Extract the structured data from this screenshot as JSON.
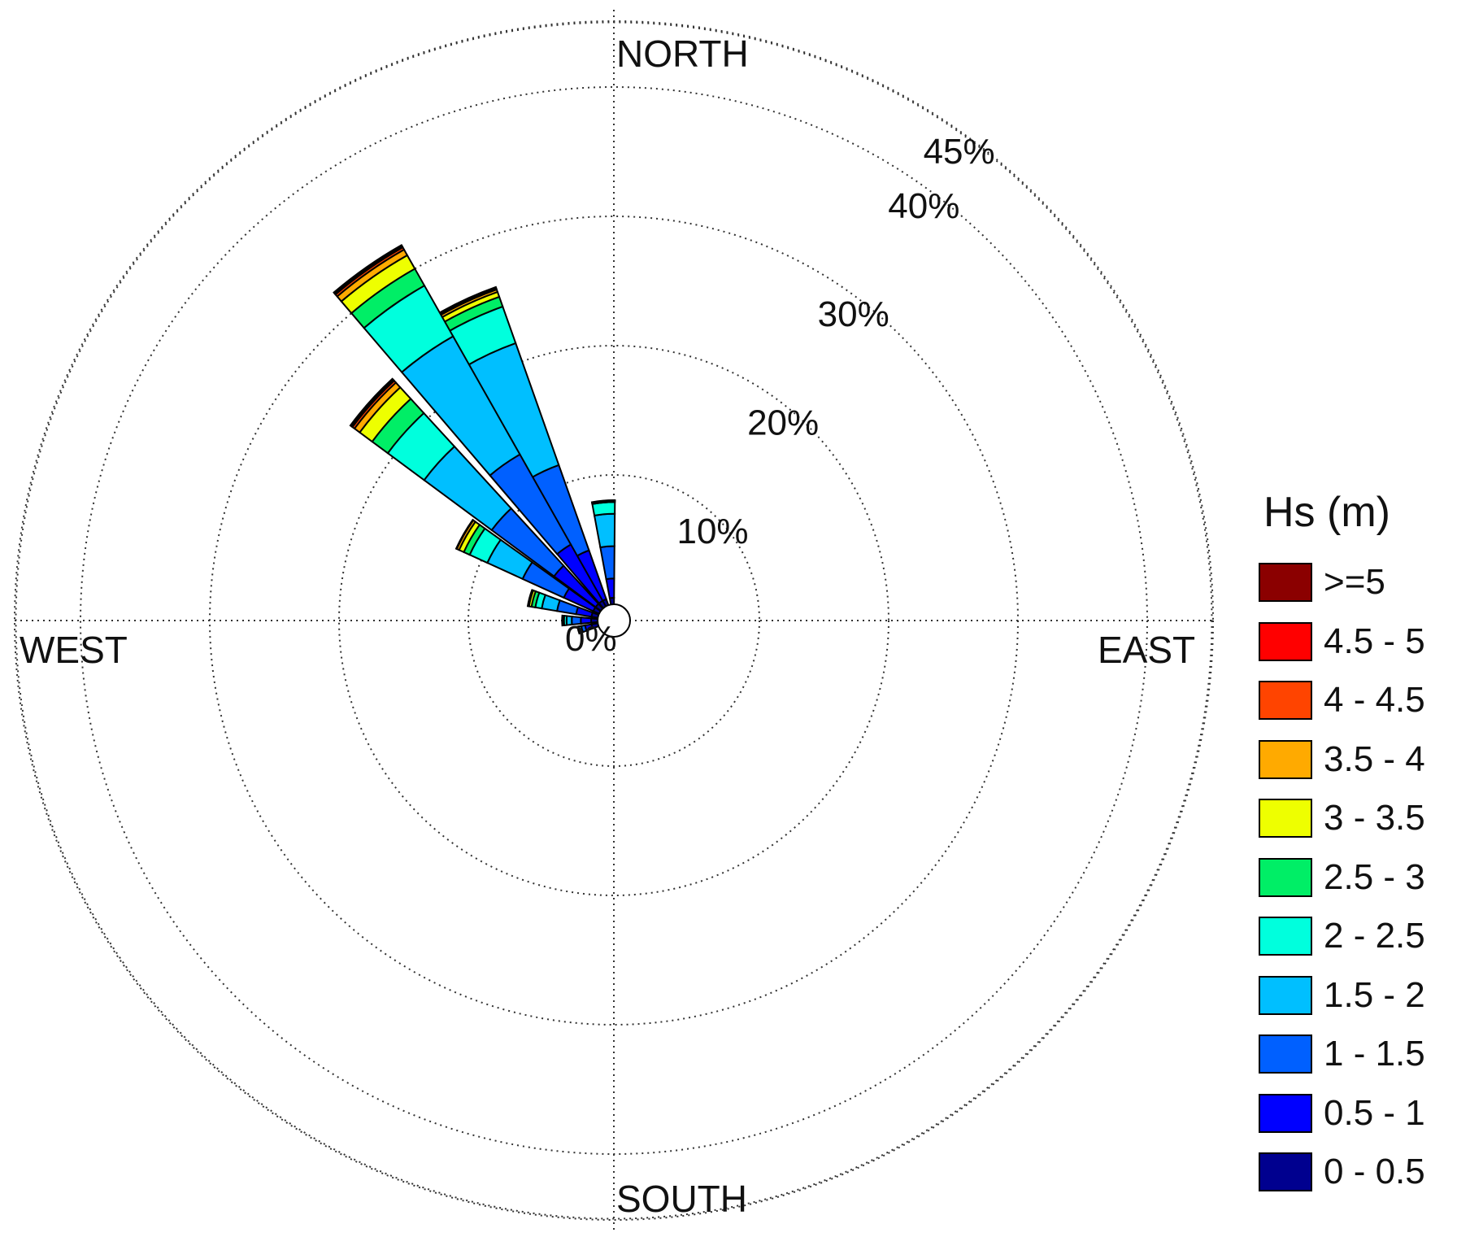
{
  "chart_data": {
    "type": "windrose",
    "directions": {
      "north": "NORTH",
      "east": "EAST",
      "south": "SOUTH",
      "west": "WEST"
    },
    "radial_ticks": [
      {
        "value": 10,
        "label": "10%"
      },
      {
        "value": 20,
        "label": "20%"
      },
      {
        "value": 30,
        "label": "30%"
      },
      {
        "value": 40,
        "label": "40%"
      },
      {
        "value": 45,
        "label": "45%"
      }
    ],
    "origin_label": "0%",
    "legend": {
      "title": "Hs (m)",
      "placement": "right"
    },
    "bins": [
      {
        "label": "0 - 0.5",
        "color": "#00008f"
      },
      {
        "label": "0.5 - 1",
        "color": "#0000ff"
      },
      {
        "label": "1 - 1.5",
        "color": "#0060ff"
      },
      {
        "label": "1.5 - 2",
        "color": "#00bfff"
      },
      {
        "label": "2 - 2.5",
        "color": "#00ffdd"
      },
      {
        "label": "2.5 - 3",
        "color": "#00ee66"
      },
      {
        "label": "3 - 3.5",
        "color": "#eeff00"
      },
      {
        "label": "3.5 - 4",
        "color": "#ffaa00"
      },
      {
        "label": "4 - 4.5",
        "color": "#ff4400"
      },
      {
        "label": "4.5 - 5",
        "color": "#ff0000"
      },
      {
        "label": ">=5",
        "color": "#8b0000"
      }
    ],
    "sectors": [
      {
        "direction_deg": 355,
        "counts": [
          0.5,
          1.5,
          2.5,
          2.5,
          0.9,
          0.1,
          0.03,
          0.02,
          0,
          0,
          0
        ]
      },
      {
        "direction_deg": 335,
        "counts": [
          0.5,
          4.0,
          7.0,
          10.0,
          3.0,
          0.8,
          0.4,
          0.2,
          0.1,
          0.05,
          0.05
        ]
      },
      {
        "direction_deg": 325,
        "counts": [
          0.5,
          5.0,
          8.0,
          10.5,
          4.5,
          1.5,
          1.2,
          0.5,
          0.2,
          0.1,
          0.1
        ]
      },
      {
        "direction_deg": 312,
        "counts": [
          0.5,
          4.0,
          6.0,
          6.5,
          3.5,
          1.5,
          1.2,
          0.5,
          0.2,
          0.1,
          0.1
        ]
      },
      {
        "direction_deg": 300,
        "counts": [
          0.5,
          2.5,
          3.5,
          3.0,
          1.5,
          0.5,
          0.4,
          0.2,
          0.05,
          0,
          0
        ]
      },
      {
        "direction_deg": 285,
        "counts": [
          0.5,
          1.2,
          1.5,
          1.2,
          0.5,
          0.3,
          0.2,
          0.1,
          0,
          0,
          0
        ]
      },
      {
        "direction_deg": 270,
        "counts": [
          0.5,
          0.8,
          0.7,
          0.4,
          0.2,
          0.1,
          0.05,
          0,
          0,
          0,
          0
        ]
      },
      {
        "direction_deg": 255,
        "counts": [
          0.5,
          0.5,
          0.3,
          0.2,
          0.1,
          0,
          0,
          0,
          0,
          0,
          0
        ]
      }
    ]
  }
}
